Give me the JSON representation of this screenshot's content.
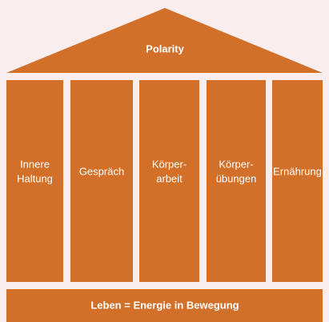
{
  "roof": {
    "label": "Polarity"
  },
  "pillars": [
    {
      "lines": [
        "Innere",
        "Haltung"
      ]
    },
    {
      "lines": [
        "Gespräch"
      ]
    },
    {
      "lines": [
        "Körper-",
        "arbeit"
      ]
    },
    {
      "lines": [
        "Körper-",
        "übungen"
      ]
    },
    {
      "lines": [
        "Ernährung"
      ]
    }
  ],
  "base": {
    "label": "Leben = Energie in Bewegung"
  }
}
